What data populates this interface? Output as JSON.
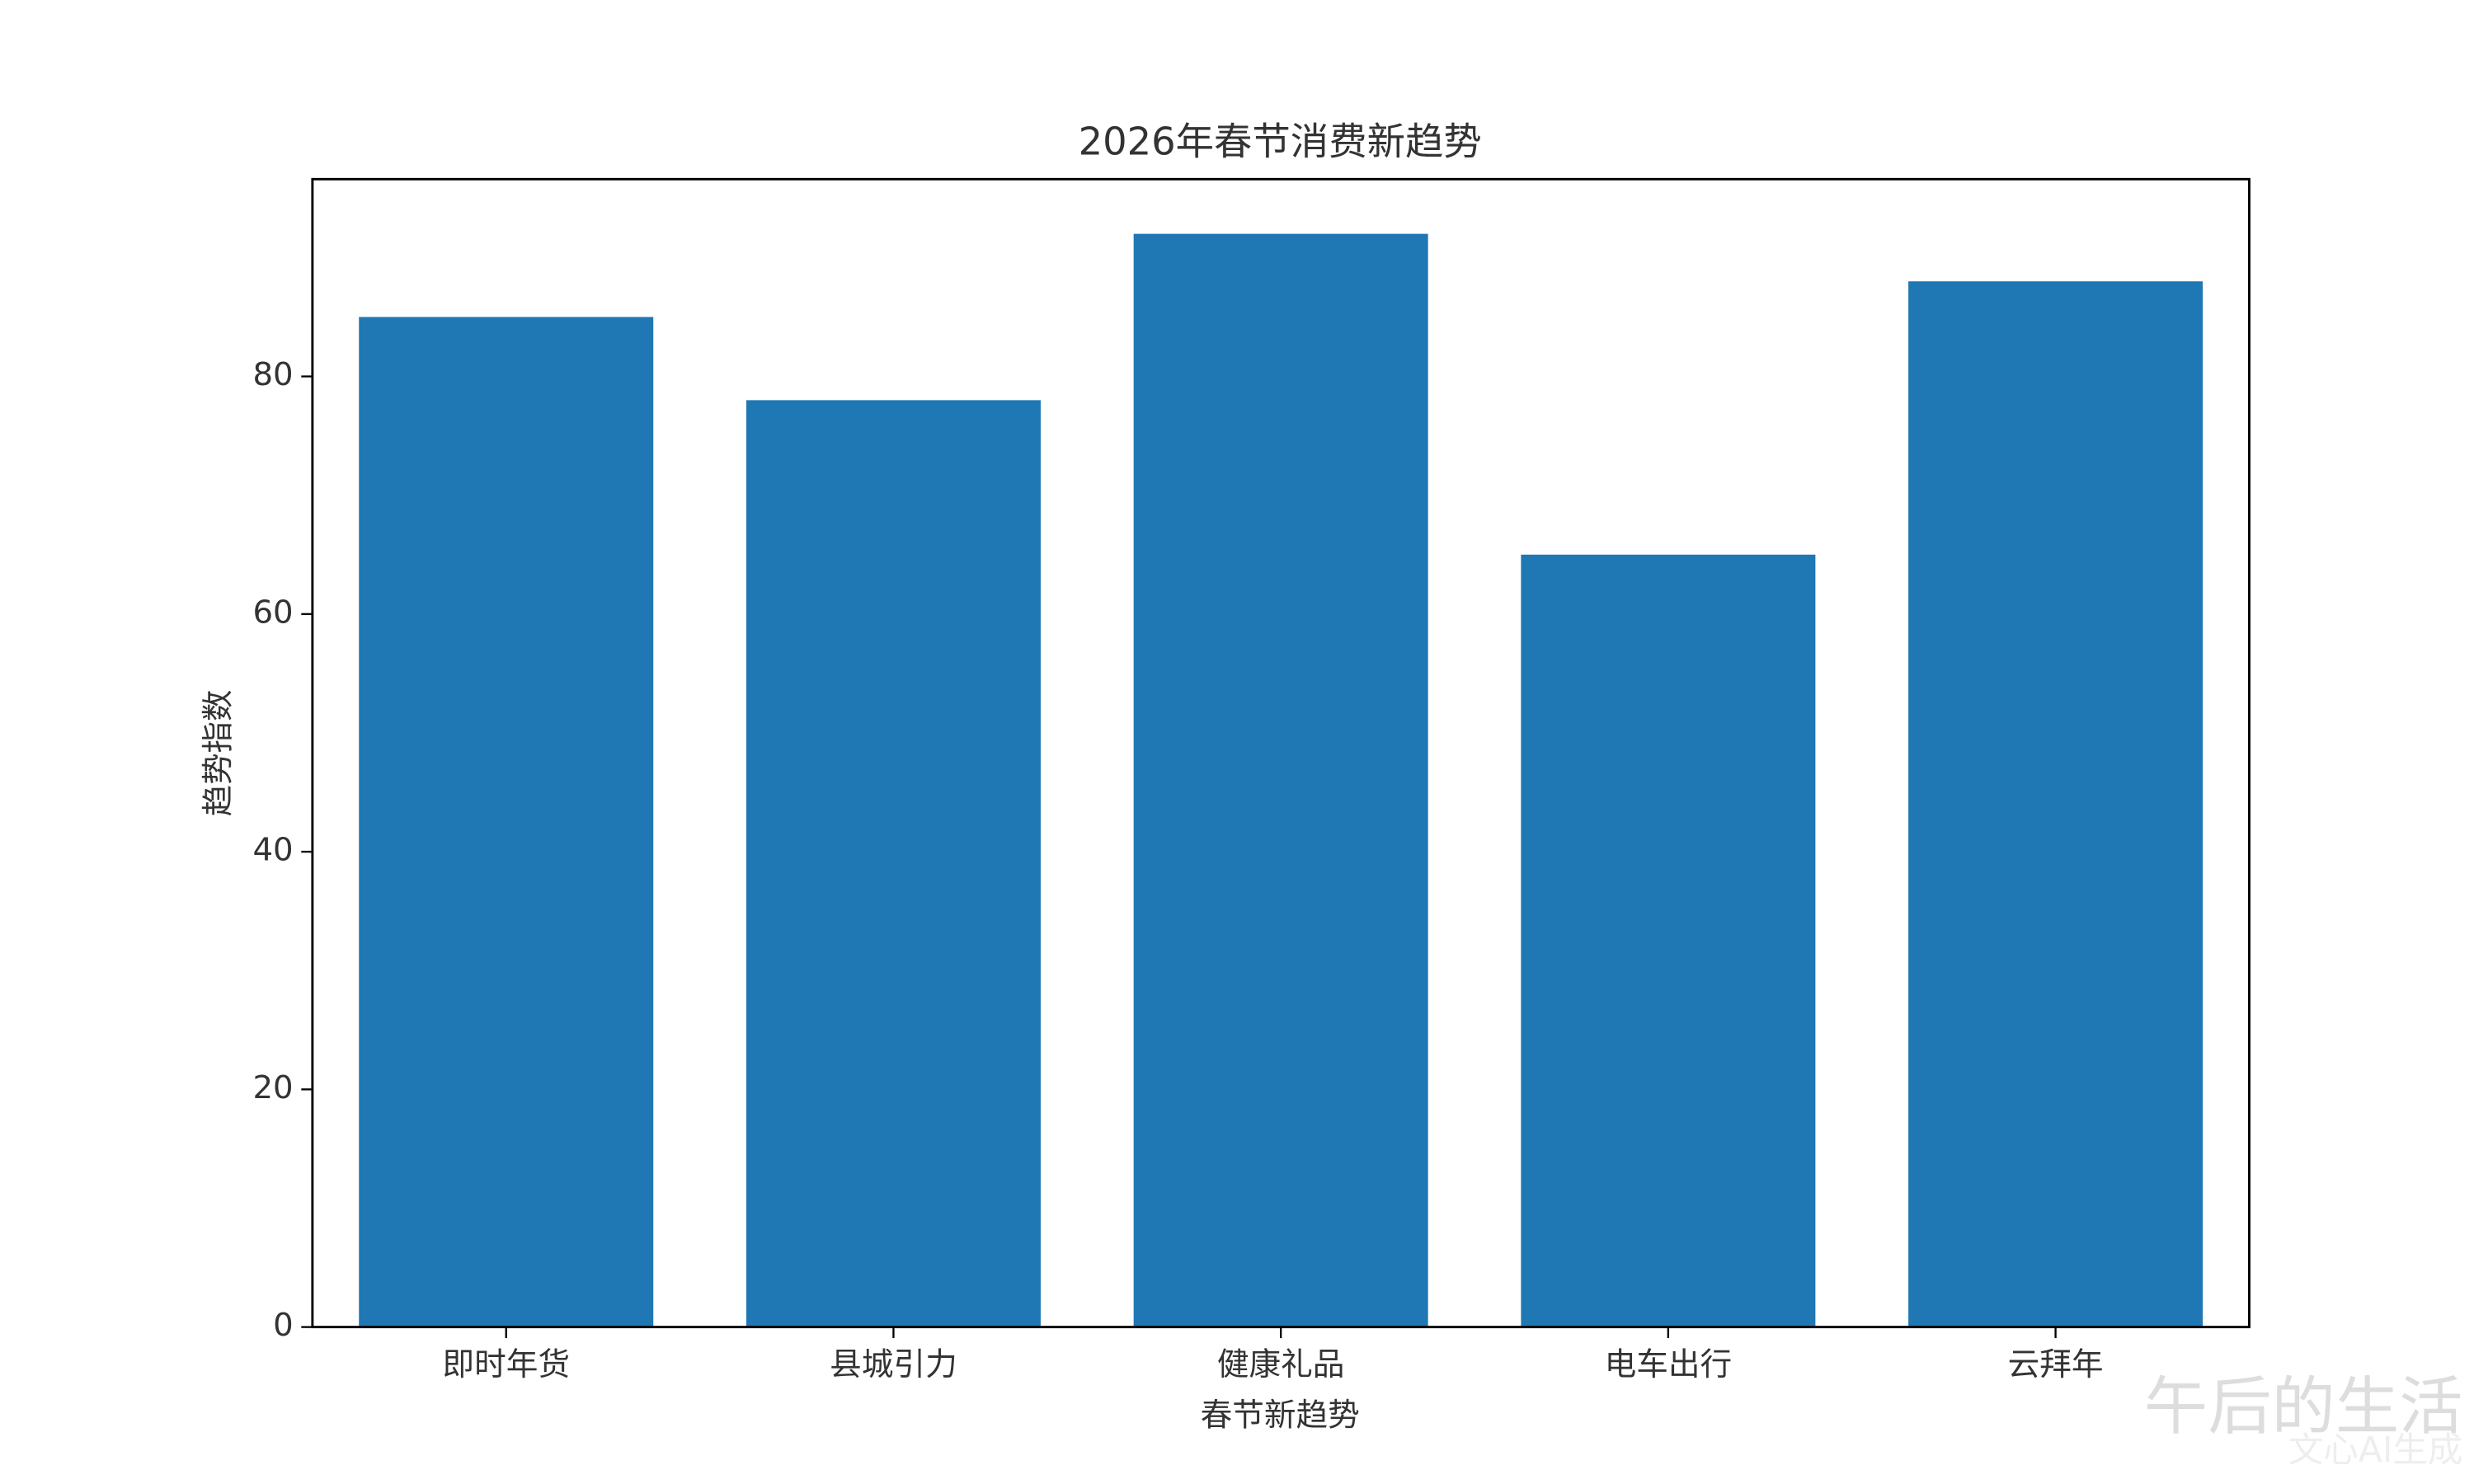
{
  "chart_data": {
    "type": "bar",
    "title": "2026年春节消费新趋势",
    "x_label": "春节新趋势",
    "y_label": "趋势指数",
    "categories": [
      "即时年货",
      "县城引力",
      "健康礼品",
      "电车出行",
      "云拜年"
    ],
    "values": [
      85,
      78,
      92,
      65,
      88
    ],
    "color": "#1f77b4",
    "ylim": [
      0,
      96.6
    ],
    "yticks": [
      0,
      20,
      40,
      60,
      80
    ],
    "grid": false,
    "watermark": "午后的生活",
    "watermark_note": "文心AI生成"
  }
}
